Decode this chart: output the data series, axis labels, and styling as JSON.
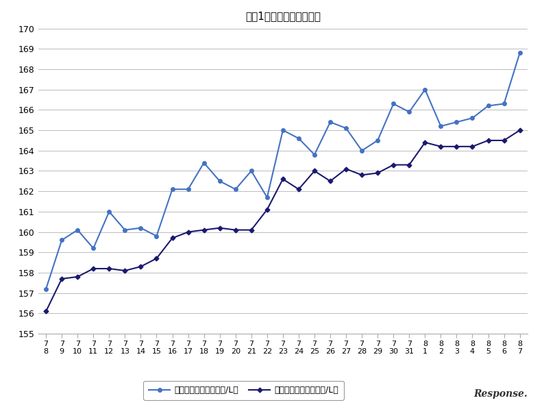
{
  "title": "最近1ヶ月のハイオク価格",
  "x_labels_top": [
    "7",
    "7",
    "7",
    "7",
    "7",
    "7",
    "7",
    "7",
    "7",
    "7",
    "7",
    "7",
    "7",
    "7",
    "7",
    "7",
    "7",
    "7",
    "7",
    "7",
    "7",
    "7",
    "7",
    "7",
    "8",
    "8",
    "8",
    "8",
    "8",
    "8",
    "8"
  ],
  "x_labels_bot": [
    "8",
    "9",
    "10",
    "11",
    "12",
    "13",
    "14",
    "15",
    "16",
    "17",
    "18",
    "19",
    "20",
    "21",
    "22",
    "23",
    "24",
    "25",
    "26",
    "27",
    "28",
    "29",
    "30",
    "31",
    "1",
    "2",
    "3",
    "4",
    "5",
    "6",
    "7"
  ],
  "kanban_values": [
    157.2,
    159.6,
    160.1,
    159.2,
    161.0,
    160.1,
    160.2,
    159.8,
    162.1,
    162.1,
    163.4,
    162.5,
    162.1,
    163.0,
    161.7,
    165.0,
    164.6,
    163.8,
    165.4,
    165.1,
    164.0,
    164.5,
    166.3,
    165.9,
    167.0,
    165.2,
    165.4,
    165.6,
    166.2,
    166.3,
    168.8
  ],
  "jissai_values": [
    156.1,
    157.7,
    157.8,
    158.2,
    158.2,
    158.1,
    158.3,
    158.7,
    159.7,
    160.0,
    160.1,
    160.2,
    160.1,
    160.1,
    161.1,
    162.6,
    162.1,
    163.0,
    162.5,
    163.1,
    162.8,
    162.9,
    163.3,
    163.3,
    164.4,
    164.2,
    164.2,
    164.2,
    164.5,
    164.5,
    165.0
  ],
  "ylim": [
    155,
    170
  ],
  "yticks": [
    155,
    156,
    157,
    158,
    159,
    160,
    161,
    162,
    163,
    164,
    165,
    166,
    167,
    168,
    169,
    170
  ],
  "kanban_color": "#4472C4",
  "jissai_color": "#1A1A6E",
  "legend_kanban": "ハイオク看板価格（円/L）",
  "legend_jissai": "ハイオク実売価格（円/L）",
  "bg_color": "#FFFFFF",
  "grid_color": "#BBBBBB"
}
